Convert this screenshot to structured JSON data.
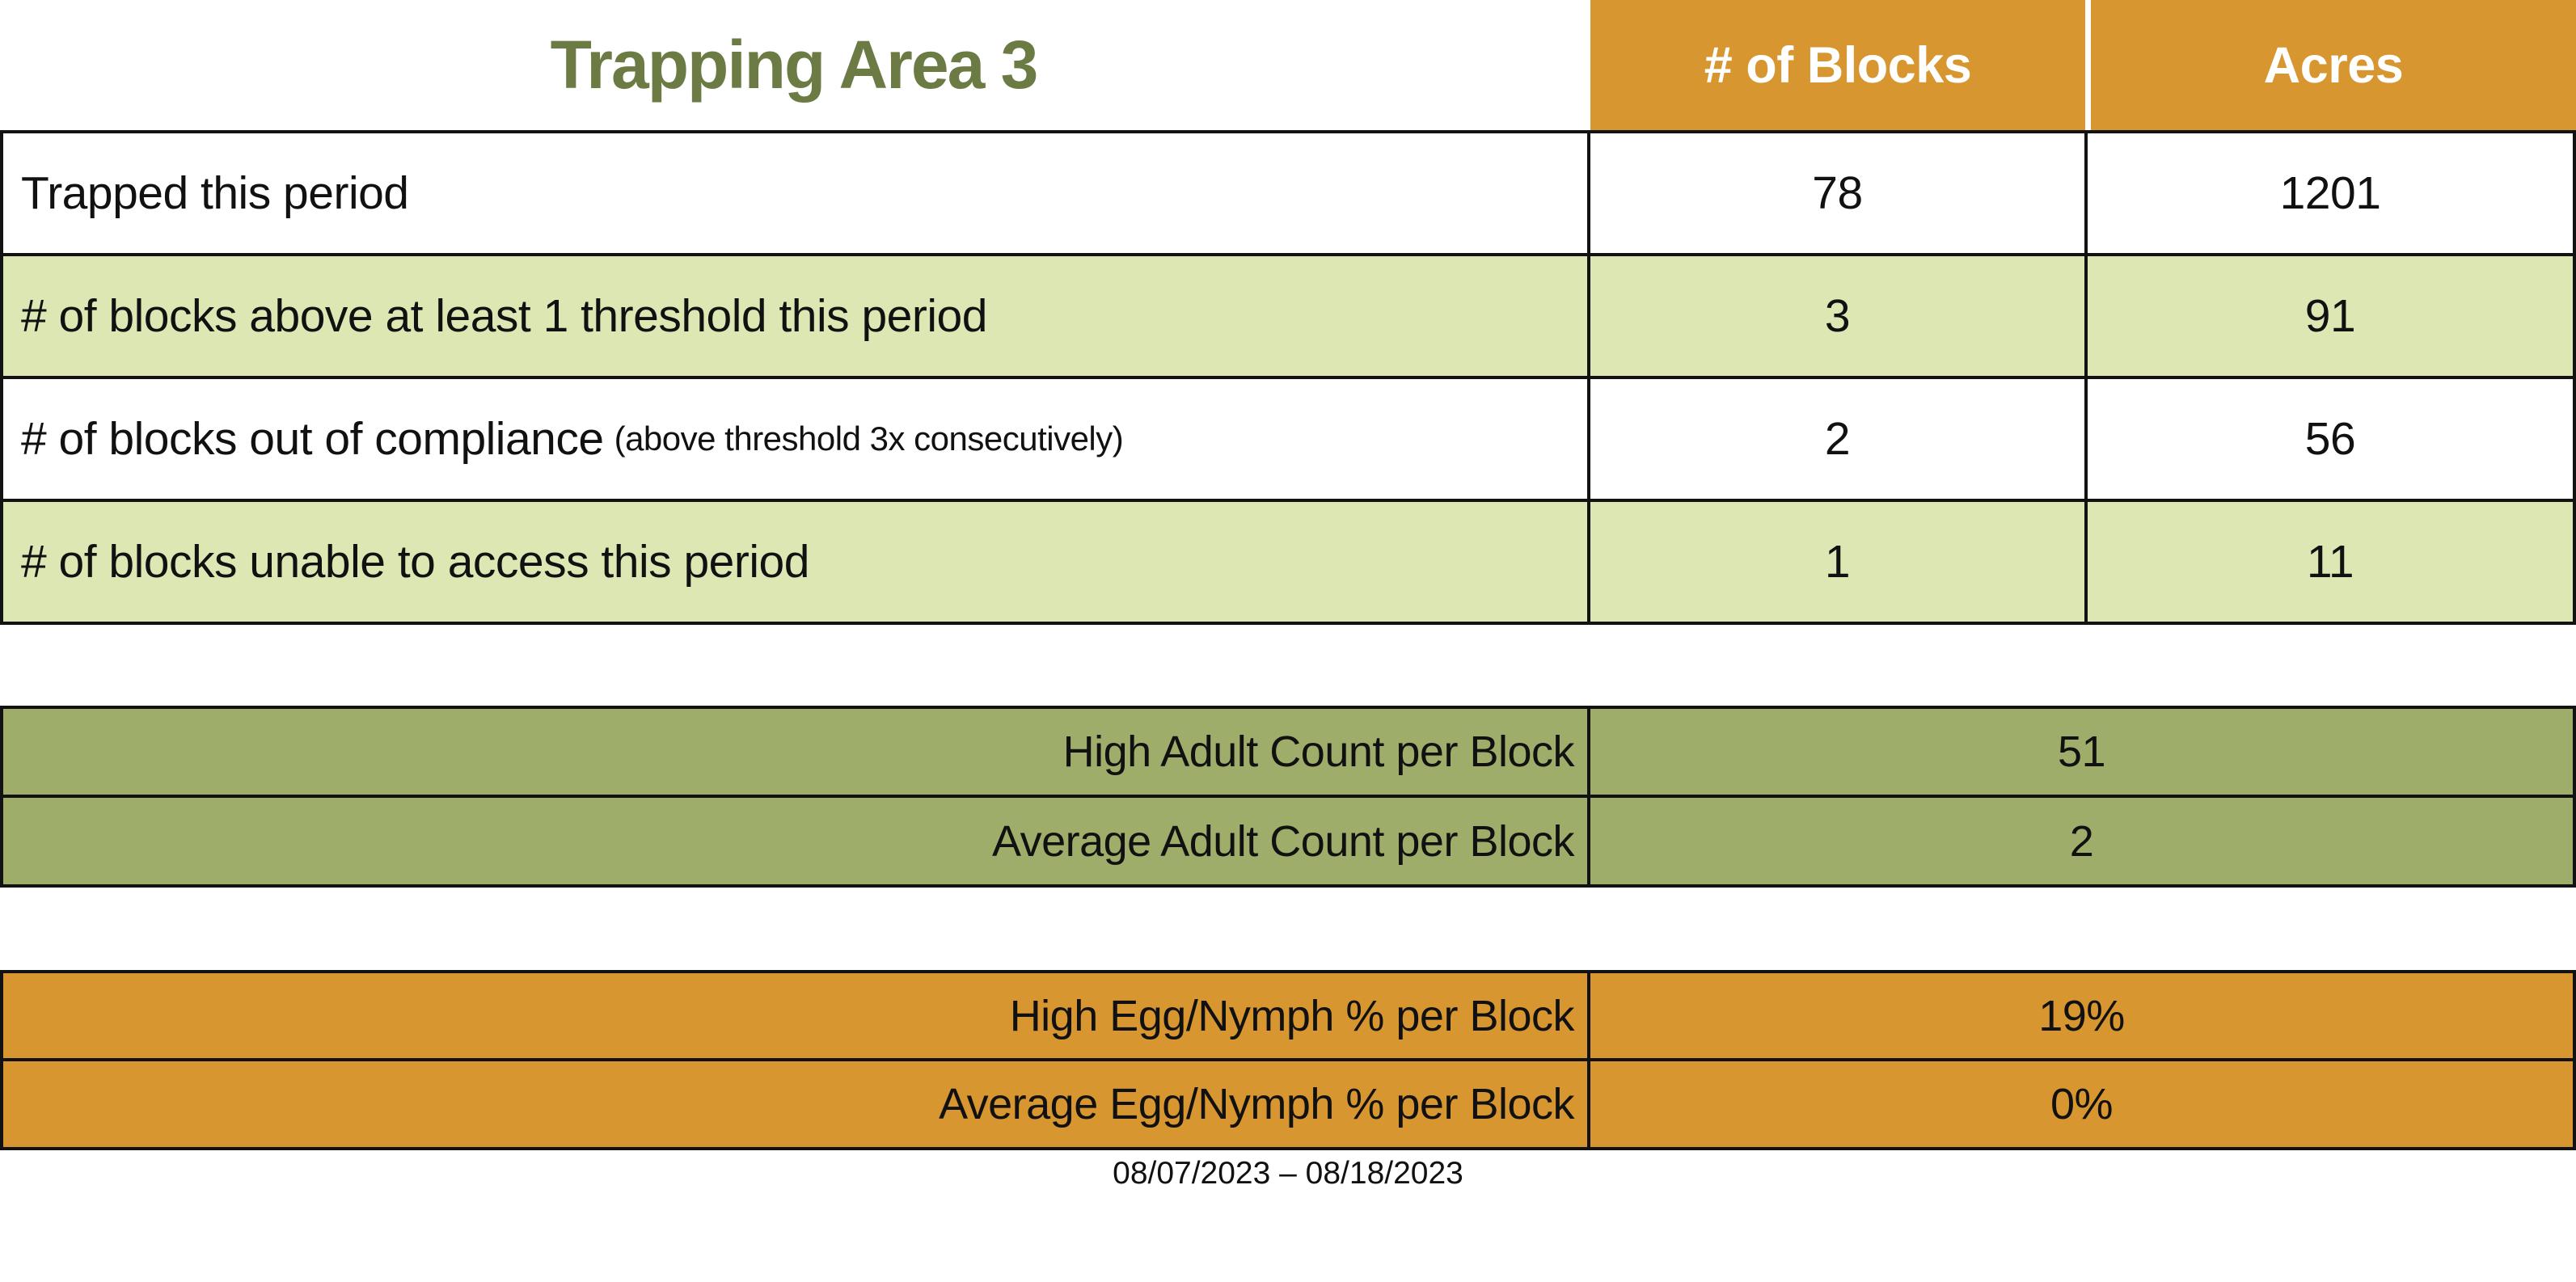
{
  "title": "Trapping Area 3",
  "colors": {
    "orange": "#D79630",
    "light_green": "#DCE7B3",
    "olive": "#9FAD6A",
    "title_green": "#6C7A44",
    "border": "#121212",
    "header_text": "#FFFFFF",
    "body_text": "#111111"
  },
  "main_table": {
    "columns": [
      "# of Blocks",
      "Acres"
    ],
    "rows": [
      {
        "label": "Trapped this period",
        "note": "",
        "blocks": "78",
        "acres": "1201"
      },
      {
        "label": "# of blocks above at least 1 threshold this period",
        "note": "",
        "blocks": "3",
        "acres": "91"
      },
      {
        "label": "# of blocks out of compliance",
        "note": "(above threshold 3x consecutively)",
        "blocks": "2",
        "acres": "56"
      },
      {
        "label": "# of blocks unable to access this period",
        "note": "",
        "blocks": "1",
        "acres": "11"
      }
    ]
  },
  "adult_section": {
    "rows": [
      {
        "label": "High Adult Count per Block",
        "value": "51"
      },
      {
        "label": "Average Adult Count per Block",
        "value": "2"
      }
    ]
  },
  "egg_section": {
    "rows": [
      {
        "label": "High Egg/Nymph % per Block",
        "value": "19%"
      },
      {
        "label": "Average Egg/Nymph % per Block",
        "value": "0%"
      }
    ]
  },
  "footer": {
    "date_range": "08/07/2023 – 08/18/2023"
  }
}
